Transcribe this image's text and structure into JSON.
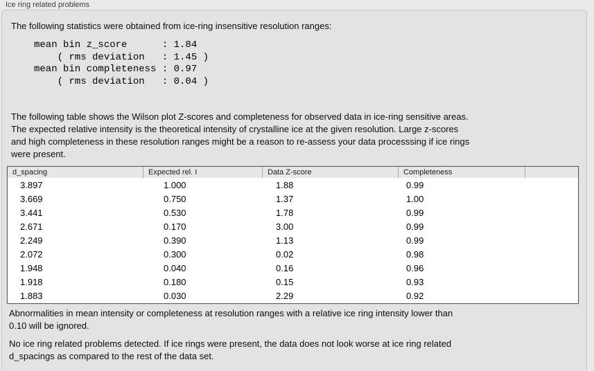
{
  "window": {
    "title": "Ice ring related problems"
  },
  "panel": {
    "intro": "The following statistics were obtained from ice-ring insensitive resolution ranges:",
    "stats": "mean bin z_score      : 1.84\n    ( rms deviation   : 1.45 )\nmean bin completeness : 0.97\n    ( rms deviation   : 0.04 )",
    "description": "The following table shows the Wilson plot Z-scores and completeness for observed data in ice-ring sensitive areas.\nThe expected relative intensity is the theoretical intensity of crystalline ice at the given resolution. Large z-scores\nand high completeness in these resolution ranges might be a reason to re-assess your data processsing if ice rings\nwere present.",
    "note_ignore": "Abnormalities in mean intensity or completeness at resolution ranges with a relative ice ring intensity lower than\n0.10 will be ignored.",
    "note_conclusion": "No ice ring related problems detected. If ice rings were present, the data does not look worse at ice ring related\nd_spacings as compared to the rest of the data set."
  },
  "table": {
    "columns": [
      "d_spacing",
      "Expected rel. I",
      "Data Z-score",
      "Completeness",
      ""
    ],
    "rows": [
      [
        "3.897",
        "1.000",
        "1.88",
        "0.99"
      ],
      [
        "3.669",
        "0.750",
        "1.37",
        "1.00"
      ],
      [
        "3.441",
        "0.530",
        "1.78",
        "0.99"
      ],
      [
        "2.671",
        "0.170",
        "3.00",
        "0.99"
      ],
      [
        "2.249",
        "0.390",
        "1.13",
        "0.99"
      ],
      [
        "2.072",
        "0.300",
        "0.02",
        "0.98"
      ],
      [
        "1.948",
        "0.040",
        "0.16",
        "0.96"
      ],
      [
        "1.918",
        "0.180",
        "0.15",
        "0.93"
      ],
      [
        "1.883",
        "0.030",
        "2.29",
        "0.92"
      ]
    ]
  },
  "colors": {
    "page_bg": "#eaeaea",
    "panel_bg": "#e3e3e3",
    "panel_border": "#c6c6c6",
    "table_border": "#5e5e5e",
    "header_bg": "#e7e7e7"
  }
}
